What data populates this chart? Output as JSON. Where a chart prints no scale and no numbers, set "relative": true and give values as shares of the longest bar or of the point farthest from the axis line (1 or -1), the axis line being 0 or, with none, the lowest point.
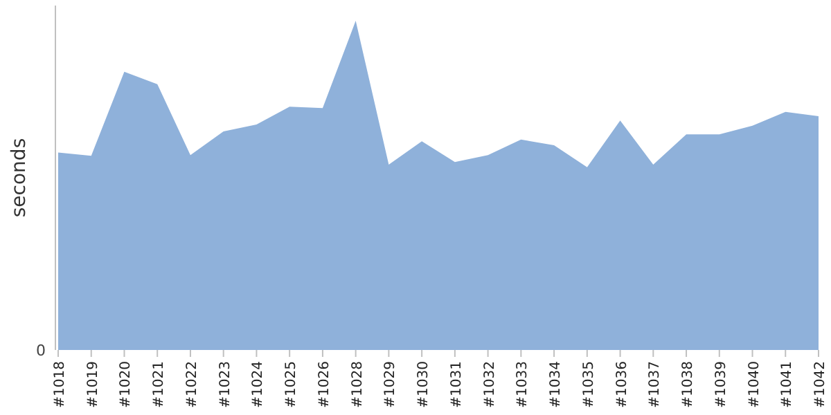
{
  "chart_data": {
    "type": "area",
    "ylabel": "seconds",
    "relative": true,
    "annotations": [
      "0"
    ],
    "categories": [
      "#1018",
      "#1019",
      "#1020",
      "#1021",
      "#1022",
      "#1023",
      "#1024",
      "#1025",
      "#1026",
      "#1028",
      "#1029",
      "#1030",
      "#1031",
      "#1032",
      "#1033",
      "#1034",
      "#1035",
      "#1036",
      "#1037",
      "#1038",
      "#1039",
      "#1040",
      "#1041",
      "#1042"
    ],
    "series": [
      {
        "color": "#8fb1da",
        "values": [
          0.6,
          0.59,
          0.845,
          0.807,
          0.592,
          0.664,
          0.685,
          0.739,
          0.735,
          1,
          0.563,
          0.634,
          0.571,
          0.592,
          0.639,
          0.622,
          0.555,
          0.697,
          0.563,
          0.655,
          0.655,
          0.681,
          0.723,
          0.71
        ]
      }
    ]
  }
}
